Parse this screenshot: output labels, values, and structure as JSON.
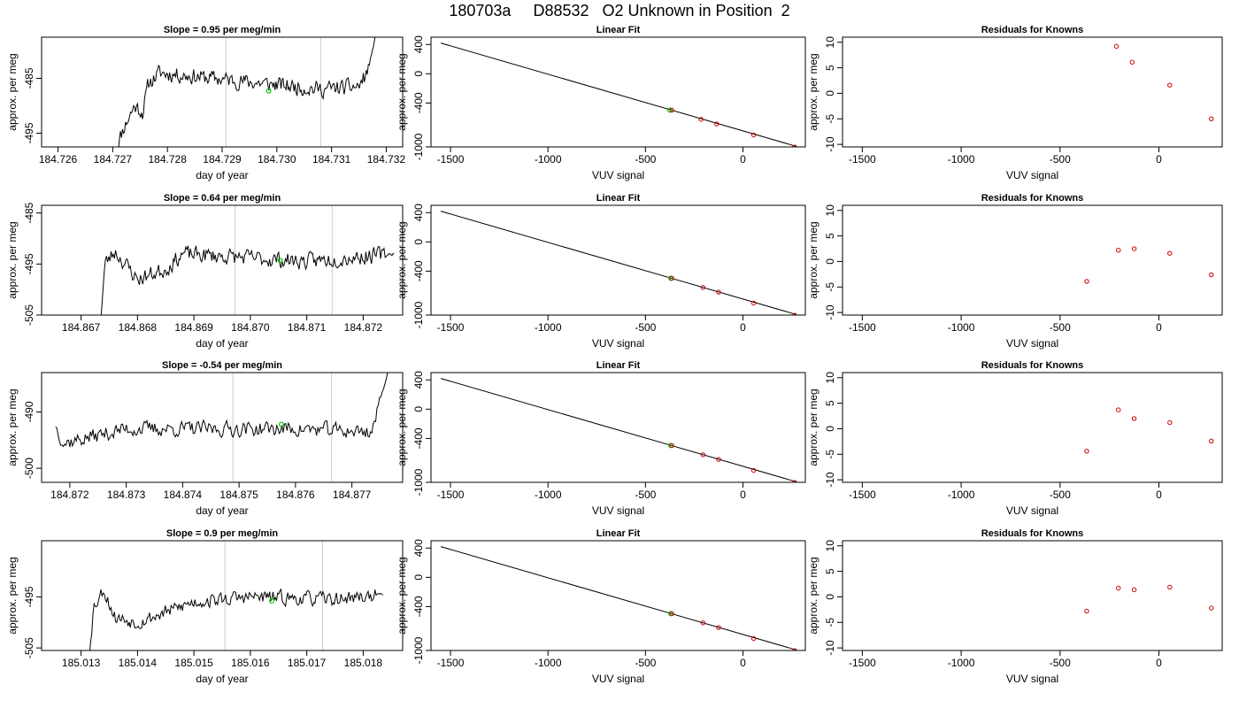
{
  "figure": {
    "title": "180703a     D88532   O2 Unknown in Position  2"
  },
  "colors": {
    "trace": "#000000",
    "guide": "#cccccc",
    "unknown_point": "#00cc00",
    "known_point": "#cc0000"
  },
  "chart_data": [
    {
      "row": 1,
      "type": "line",
      "title": "Slope =  0.95  per meg/min",
      "xlabel": "day of year",
      "ylabel": "approx. per meg",
      "xlim": [
        184.7257,
        184.7323
      ],
      "ylim": [
        -497.5,
        -477.5
      ],
      "xticks": [
        184.726,
        184.727,
        184.728,
        184.729,
        184.73,
        184.731,
        184.732
      ],
      "xtick_labels": [
        "184.726",
        "184.727",
        "184.728",
        "184.729",
        "184.730",
        "184.731",
        "184.732"
      ],
      "yticks": [
        -485,
        -495
      ],
      "ytick_labels": [
        "-485",
        "-495"
      ],
      "vlines": [
        184.72907,
        184.7308
      ],
      "marker": {
        "x": 184.72985,
        "y": -487.3
      },
      "series": {
        "x_start": 184.72705,
        "x_end": 184.7318,
        "anchors": [
          [
            184.72705,
            -498
          ],
          [
            184.7272,
            -494
          ],
          [
            184.7274,
            -490
          ],
          [
            184.72755,
            -491.2
          ],
          [
            184.72765,
            -486
          ],
          [
            184.72785,
            -484
          ],
          [
            184.7308,
            -487
          ],
          [
            184.7315,
            -486.5
          ],
          [
            184.73165,
            -484
          ],
          [
            184.73175,
            -480
          ],
          [
            184.7318,
            -477
          ]
        ],
        "noise_seed": 11,
        "noise_amp": 2.0,
        "n": 260
      }
    },
    {
      "row": 1,
      "type": "scatter",
      "title": "Linear Fit",
      "xlabel": "VUV signal",
      "ylabel": "approx. per meg",
      "xlim": [
        -1600,
        320
      ],
      "ylim": [
        -1000,
        500
      ],
      "xticks": [
        -1500,
        -1000,
        -500,
        0
      ],
      "xtick_labels": [
        "-1500",
        "-1000",
        "-500",
        "0"
      ],
      "yticks": [
        400,
        0,
        -400,
        -1000
      ],
      "ytick_labels": [
        "400",
        "0",
        "-400",
        "-1000"
      ],
      "fit_line": {
        "x1": -1550,
        "y1": 420,
        "x2": 270,
        "y2": -990
      },
      "knowns": [
        {
          "x": -365,
          "y": -497
        },
        {
          "x": -215,
          "y": -623
        },
        {
          "x": -135,
          "y": -686
        },
        {
          "x": 55,
          "y": -837
        },
        {
          "x": 265,
          "y": -1002
        }
      ],
      "unknown": {
        "x": -375,
        "y": -496
      }
    },
    {
      "row": 1,
      "type": "scatter",
      "title": "Residuals for Knowns",
      "xlabel": "VUV signal",
      "ylabel": "approx. per meg",
      "xlim": [
        -1600,
        320
      ],
      "ylim": [
        -10.5,
        11
      ],
      "xticks": [
        -1500,
        -1000,
        -500,
        0
      ],
      "xtick_labels": [
        "-1500",
        "-1000",
        "-500",
        "0"
      ],
      "yticks": [
        10,
        5,
        0,
        -5,
        -10
      ],
      "ytick_labels": [
        "10",
        "5",
        "0",
        "-5",
        "-10"
      ],
      "knowns": [
        {
          "x": -215,
          "y": 9.2
        },
        {
          "x": -135,
          "y": 6.1
        },
        {
          "x": 55,
          "y": 1.6
        },
        {
          "x": 265,
          "y": -5.0
        }
      ]
    },
    {
      "row": 2,
      "type": "line",
      "title": "Slope =  0.64  per meg/min",
      "xlabel": "day of year",
      "ylabel": "approx. per meg",
      "xlim": [
        184.8663,
        184.8727
      ],
      "ylim": [
        -505,
        -483.5
      ],
      "xticks": [
        184.867,
        184.868,
        184.869,
        184.87,
        184.871,
        184.872
      ],
      "xtick_labels": [
        "184.867",
        "184.868",
        "184.869",
        "184.870",
        "184.871",
        "184.872"
      ],
      "yticks": [
        -485,
        -495,
        -505
      ],
      "ytick_labels": [
        "-485",
        "-495",
        "-505"
      ],
      "vlines": [
        184.86973,
        184.87145
      ],
      "marker": {
        "x": 184.87053,
        "y": -494.3
      },
      "series": {
        "x_start": 184.86735,
        "x_end": 184.87255,
        "anchors": [
          [
            184.86735,
            -506
          ],
          [
            184.86742,
            -495
          ],
          [
            184.8676,
            -492.5
          ],
          [
            184.868,
            -498
          ],
          [
            184.8685,
            -496
          ],
          [
            184.8688,
            -493
          ],
          [
            184.871,
            -494.5
          ],
          [
            184.8725,
            -493
          ],
          [
            184.87255,
            -493
          ]
        ],
        "noise_seed": 23,
        "noise_amp": 2.2,
        "n": 260
      }
    },
    {
      "row": 2,
      "type": "scatter",
      "title": "Linear Fit",
      "xlabel": "VUV signal",
      "ylabel": "approx. per meg",
      "xlim": [
        -1600,
        320
      ],
      "ylim": [
        -1000,
        500
      ],
      "xticks": [
        -1500,
        -1000,
        -500,
        0
      ],
      "xtick_labels": [
        "-1500",
        "-1000",
        "-500",
        "0"
      ],
      "yticks": [
        400,
        0,
        -400,
        -1000
      ],
      "ytick_labels": [
        "400",
        "0",
        "-400",
        "-1000"
      ],
      "fit_line": {
        "x1": -1550,
        "y1": 420,
        "x2": 270,
        "y2": -990
      },
      "knowns": [
        {
          "x": -365,
          "y": -497
        },
        {
          "x": -205,
          "y": -623
        },
        {
          "x": -125,
          "y": -686
        },
        {
          "x": 55,
          "y": -837
        },
        {
          "x": 265,
          "y": -1002
        }
      ],
      "unknown": {
        "x": -370,
        "y": -496
      }
    },
    {
      "row": 2,
      "type": "scatter",
      "title": "Residuals for Knowns",
      "xlabel": "VUV signal",
      "ylabel": "approx. per meg",
      "xlim": [
        -1600,
        320
      ],
      "ylim": [
        -10.5,
        11
      ],
      "xticks": [
        -1500,
        -1000,
        -500,
        0
      ],
      "xtick_labels": [
        "-1500",
        "-1000",
        "-500",
        "0"
      ],
      "yticks": [
        10,
        5,
        0,
        -5,
        -10
      ],
      "ytick_labels": [
        "10",
        "5",
        "0",
        "-5",
        "-10"
      ],
      "knowns": [
        {
          "x": -365,
          "y": -3.9
        },
        {
          "x": -205,
          "y": 2.2
        },
        {
          "x": -125,
          "y": 2.5
        },
        {
          "x": 55,
          "y": 1.6
        },
        {
          "x": 265,
          "y": -2.6
        }
      ]
    },
    {
      "row": 3,
      "type": "line",
      "title": "Slope =  -0.54  per meg/min",
      "xlabel": "day of year",
      "ylabel": "approx. per meg",
      "xlim": [
        184.8715,
        184.8779
      ],
      "ylim": [
        -502.5,
        -483
      ],
      "xticks": [
        184.872,
        184.873,
        184.874,
        184.875,
        184.876,
        184.877
      ],
      "xtick_labels": [
        "184.872",
        "184.873",
        "184.874",
        "184.875",
        "184.876",
        "184.877"
      ],
      "yticks": [
        -490,
        -500
      ],
      "ytick_labels": [
        "-490",
        "-500"
      ],
      "vlines": [
        184.87489,
        184.87664
      ],
      "marker": {
        "x": 184.87575,
        "y": -492.2
      },
      "series": {
        "x_start": 184.87175,
        "x_end": 184.87765,
        "anchors": [
          [
            184.87175,
            -492.5
          ],
          [
            184.8719,
            -495.5
          ],
          [
            184.873,
            -493
          ],
          [
            184.876,
            -493
          ],
          [
            184.87735,
            -493.5
          ],
          [
            184.87745,
            -490
          ],
          [
            184.87755,
            -486
          ],
          [
            184.87765,
            -482.5
          ]
        ],
        "noise_seed": 37,
        "noise_amp": 1.9,
        "n": 260
      }
    },
    {
      "row": 3,
      "type": "scatter",
      "title": "Linear Fit",
      "xlabel": "VUV signal",
      "ylabel": "approx. per meg",
      "xlim": [
        -1600,
        320
      ],
      "ylim": [
        -1000,
        500
      ],
      "xticks": [
        -1500,
        -1000,
        -500,
        0
      ],
      "xtick_labels": [
        "-1500",
        "-1000",
        "-500",
        "0"
      ],
      "yticks": [
        400,
        0,
        -400,
        -1000
      ],
      "ytick_labels": [
        "400",
        "0",
        "-400",
        "-1000"
      ],
      "fit_line": {
        "x1": -1550,
        "y1": 420,
        "x2": 270,
        "y2": -990
      },
      "knowns": [
        {
          "x": -365,
          "y": -497
        },
        {
          "x": -205,
          "y": -623
        },
        {
          "x": -125,
          "y": -686
        },
        {
          "x": 55,
          "y": -837
        },
        {
          "x": 265,
          "y": -1002
        }
      ],
      "unknown": {
        "x": -370,
        "y": -496
      }
    },
    {
      "row": 3,
      "type": "scatter",
      "title": "Residuals for Knowns",
      "xlabel": "VUV signal",
      "ylabel": "approx. per meg",
      "xlim": [
        -1600,
        320
      ],
      "ylim": [
        -10.5,
        11
      ],
      "xticks": [
        -1500,
        -1000,
        -500,
        0
      ],
      "xtick_labels": [
        "-1500",
        "-1000",
        "-500",
        "0"
      ],
      "yticks": [
        10,
        5,
        0,
        -5,
        -10
      ],
      "ytick_labels": [
        "10",
        "5",
        "0",
        "-5",
        "-10"
      ],
      "knowns": [
        {
          "x": -365,
          "y": -4.4
        },
        {
          "x": -205,
          "y": 3.7
        },
        {
          "x": -125,
          "y": 2.0
        },
        {
          "x": 55,
          "y": 1.2
        },
        {
          "x": 265,
          "y": -2.4
        }
      ]
    },
    {
      "row": 4,
      "type": "line",
      "title": "Slope =  0.9  per meg/min",
      "xlabel": "day of year",
      "ylabel": "approx. per meg",
      "xlim": [
        185.0123,
        185.0187
      ],
      "ylim": [
        -505.5,
        -484
      ],
      "xticks": [
        185.013,
        185.014,
        185.015,
        185.016,
        185.017,
        185.018
      ],
      "xtick_labels": [
        "185.013",
        "185.014",
        "185.015",
        "185.016",
        "185.017",
        "185.018"
      ],
      "yticks": [
        -495,
        -505
      ],
      "ytick_labels": [
        "-495",
        "-505"
      ],
      "vlines": [
        185.01555,
        185.01728
      ],
      "marker": {
        "x": 185.01638,
        "y": -495.8
      },
      "series": {
        "x_start": 185.01315,
        "x_end": 185.01835,
        "anchors": [
          [
            185.01315,
            -506
          ],
          [
            185.01322,
            -497
          ],
          [
            185.0134,
            -493.5
          ],
          [
            185.0136,
            -499
          ],
          [
            185.014,
            -500
          ],
          [
            185.015,
            -496
          ],
          [
            185.016,
            -495
          ],
          [
            185.0175,
            -495.5
          ],
          [
            185.01835,
            -494.5
          ]
        ],
        "noise_seed": 53,
        "noise_amp": 1.9,
        "n": 260
      }
    },
    {
      "row": 4,
      "type": "scatter",
      "title": "Linear Fit",
      "xlabel": "VUV signal",
      "ylabel": "approx. per meg",
      "xlim": [
        -1600,
        320
      ],
      "ylim": [
        -1000,
        500
      ],
      "xticks": [
        -1500,
        -1000,
        -500,
        0
      ],
      "xtick_labels": [
        "-1500",
        "-1000",
        "-500",
        "0"
      ],
      "yticks": [
        400,
        0,
        -400,
        -1000
      ],
      "ytick_labels": [
        "400",
        "0",
        "-400",
        "-1000"
      ],
      "fit_line": {
        "x1": -1550,
        "y1": 420,
        "x2": 270,
        "y2": -990
      },
      "knowns": [
        {
          "x": -365,
          "y": -497
        },
        {
          "x": -205,
          "y": -623
        },
        {
          "x": -125,
          "y": -686
        },
        {
          "x": 55,
          "y": -837
        },
        {
          "x": 265,
          "y": -1002
        }
      ],
      "unknown": {
        "x": -370,
        "y": -496
      }
    },
    {
      "row": 4,
      "type": "scatter",
      "title": "Residuals for Knowns",
      "xlabel": "VUV signal",
      "ylabel": "approx. per meg",
      "xlim": [
        -1600,
        320
      ],
      "ylim": [
        -10.5,
        11
      ],
      "xticks": [
        -1500,
        -1000,
        -500,
        0
      ],
      "xtick_labels": [
        "-1500",
        "-1000",
        "-500",
        "0"
      ],
      "yticks": [
        10,
        5,
        0,
        -5,
        -10
      ],
      "ytick_labels": [
        "10",
        "5",
        "0",
        "-5",
        "-10"
      ],
      "knowns": [
        {
          "x": -365,
          "y": -2.8
        },
        {
          "x": -205,
          "y": 1.7
        },
        {
          "x": -125,
          "y": 1.4
        },
        {
          "x": 55,
          "y": 1.9
        },
        {
          "x": 265,
          "y": -2.2
        }
      ]
    }
  ]
}
